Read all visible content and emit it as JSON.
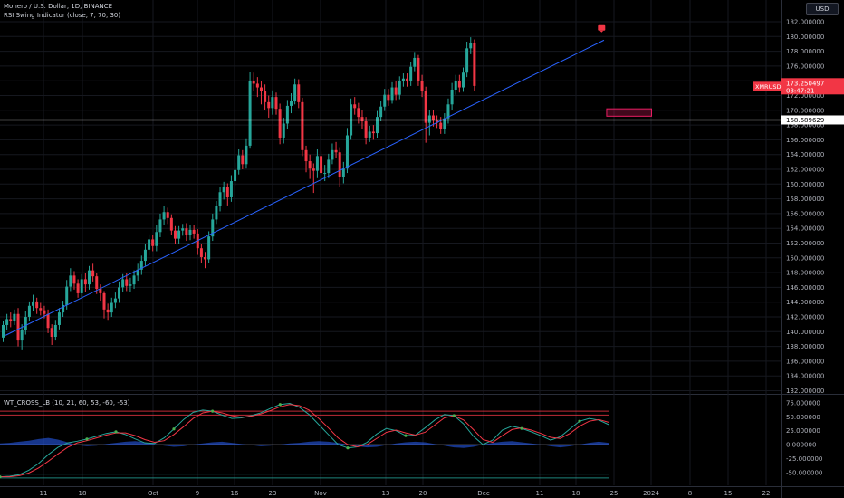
{
  "header": {
    "title": "Monero / U.S. Dollar, 1D, BINANCE",
    "indicator": "RSI Swing Indicator (close, 7, 70, 30)",
    "currency_button": "USD"
  },
  "lower_pane": {
    "indicator": "WT_CROSS_LB (10, 21, 60, 53, -60, -53)"
  },
  "price_axis": {
    "ticks": [
      "182.000000",
      "180.000000",
      "178.000000",
      "176.000000",
      "174.000000",
      "172.000000",
      "170.000000",
      "168.000000",
      "166.000000",
      "164.000000",
      "162.000000",
      "160.000000",
      "158.000000",
      "156.000000",
      "154.000000",
      "152.000000",
      "150.000000",
      "148.000000",
      "146.000000",
      "144.000000",
      "142.000000",
      "140.000000",
      "138.000000",
      "136.000000",
      "134.000000",
      "132.000000"
    ],
    "symbol_tag": "XMRUSD",
    "last_price": "173.250497",
    "countdown": "03:47:21",
    "line_price": "168.689629"
  },
  "osc_axis": {
    "ticks": [
      "75.000000",
      "50.000000",
      "25.000000",
      "0.000000",
      "-25.000000",
      "-50.000000"
    ]
  },
  "time_axis": {
    "ticks": [
      "11",
      "18",
      "Oct",
      "9",
      "16",
      "23",
      "Nov",
      "13",
      "20",
      "Dec",
      "11",
      "18",
      "25",
      "2024",
      "8",
      "15",
      "22"
    ]
  },
  "chart_data": [
    {
      "type": "candlestick",
      "symbol": "Monero / U.S. Dollar",
      "interval": "1D",
      "exchange": "BINANCE",
      "ylim": [
        131,
        183
      ],
      "last_price": 173.250497,
      "horizontal_line": 168.689629,
      "trendline": [
        [
          1,
          139.5
        ],
        [
          161,
          179.5
        ]
      ],
      "candles": [
        [
          139.2,
          140.9,
          138.6,
          141.5
        ],
        [
          140.9,
          141.7,
          140.2,
          142.4
        ],
        [
          141.7,
          141.4,
          140.6,
          142.6
        ],
        [
          141.4,
          142.4,
          140.9,
          143.0
        ],
        [
          142.4,
          138.8,
          138.0,
          143.2
        ],
        [
          138.8,
          140.2,
          137.6,
          141.0
        ],
        [
          140.2,
          142.0,
          139.6,
          142.8
        ],
        [
          142.0,
          143.5,
          141.4,
          144.1
        ],
        [
          143.5,
          144.1,
          142.8,
          145.0
        ],
        [
          144.1,
          143.2,
          142.4,
          144.6
        ],
        [
          143.2,
          142.9,
          142.2,
          143.9
        ],
        [
          142.9,
          142.4,
          141.8,
          143.5
        ],
        [
          142.4,
          140.5,
          139.8,
          143.0
        ],
        [
          140.5,
          139.3,
          138.2,
          141.0
        ],
        [
          139.3,
          140.9,
          138.8,
          141.6
        ],
        [
          140.9,
          142.6,
          140.3,
          143.2
        ],
        [
          142.6,
          143.6,
          142.0,
          144.2
        ],
        [
          143.6,
          146.1,
          143.0,
          147.0
        ],
        [
          146.1,
          147.6,
          145.5,
          148.6
        ],
        [
          147.6,
          146.5,
          145.7,
          148.2
        ],
        [
          146.5,
          145.2,
          144.6,
          147.1
        ],
        [
          145.2,
          147.1,
          144.6,
          147.8
        ],
        [
          147.1,
          146.4,
          145.4,
          148.0
        ],
        [
          146.4,
          148.3,
          145.7,
          148.9
        ],
        [
          148.3,
          147.5,
          146.8,
          149.2
        ],
        [
          147.5,
          145.8,
          145.1,
          148.0
        ],
        [
          145.8,
          145.2,
          144.2,
          146.4
        ],
        [
          145.2,
          143.0,
          141.8,
          145.5
        ],
        [
          143.0,
          142.6,
          141.6,
          143.8
        ],
        [
          142.6,
          143.9,
          142.0,
          144.6
        ],
        [
          143.9,
          144.5,
          143.2,
          145.3
        ],
        [
          144.5,
          146.0,
          143.9,
          146.8
        ],
        [
          146.0,
          147.1,
          145.4,
          147.8
        ],
        [
          147.1,
          146.2,
          145.5,
          147.9
        ],
        [
          146.2,
          146.4,
          145.4,
          147.3
        ],
        [
          146.4,
          147.6,
          145.8,
          148.3
        ],
        [
          147.6,
          148.4,
          146.9,
          149.2
        ],
        [
          148.4,
          149.6,
          147.7,
          150.3
        ],
        [
          149.6,
          151.1,
          148.9,
          151.9
        ],
        [
          151.1,
          152.5,
          150.3,
          153.2
        ],
        [
          152.5,
          151.6,
          150.9,
          153.1
        ],
        [
          151.6,
          153.5,
          150.9,
          154.4
        ],
        [
          153.5,
          155.2,
          152.8,
          156.0
        ],
        [
          155.2,
          156.2,
          154.5,
          157.0
        ],
        [
          156.2,
          155.4,
          154.6,
          156.8
        ],
        [
          155.4,
          153.7,
          153.1,
          155.9
        ],
        [
          153.7,
          152.6,
          151.9,
          154.3
        ],
        [
          152.6,
          153.7,
          151.9,
          154.3
        ],
        [
          153.7,
          154.0,
          153.0,
          154.6
        ],
        [
          154.0,
          153.1,
          152.3,
          154.7
        ],
        [
          153.1,
          153.8,
          152.4,
          154.5
        ],
        [
          153.8,
          153.3,
          152.6,
          154.4
        ],
        [
          153.3,
          151.3,
          150.4,
          153.9
        ],
        [
          151.3,
          150.1,
          149.3,
          151.9
        ],
        [
          150.1,
          149.8,
          148.6,
          150.8
        ],
        [
          149.8,
          152.9,
          149.3,
          153.6
        ],
        [
          152.9,
          155.2,
          152.3,
          156.0
        ],
        [
          155.2,
          157.0,
          154.6,
          157.7
        ],
        [
          157.0,
          158.9,
          156.3,
          159.6
        ],
        [
          158.9,
          159.6,
          157.9,
          160.3
        ],
        [
          159.6,
          158.2,
          157.1,
          160.1
        ],
        [
          158.2,
          160.4,
          157.6,
          161.2
        ],
        [
          160.4,
          161.9,
          159.8,
          162.9
        ],
        [
          161.9,
          163.9,
          161.3,
          164.7
        ],
        [
          163.9,
          162.7,
          162.0,
          164.6
        ],
        [
          162.7,
          165.2,
          162.1,
          166.2
        ],
        [
          165.2,
          174.0,
          164.8,
          175.2
        ],
        [
          174.0,
          173.6,
          172.6,
          175.1
        ],
        [
          173.6,
          173.1,
          171.8,
          174.5
        ],
        [
          173.1,
          172.6,
          170.8,
          173.9
        ],
        [
          172.6,
          171.1,
          170.1,
          173.5
        ],
        [
          171.1,
          170.3,
          169.0,
          172.0
        ],
        [
          170.3,
          171.8,
          169.4,
          172.7
        ],
        [
          171.8,
          170.2,
          169.4,
          172.4
        ],
        [
          170.2,
          166.3,
          165.4,
          170.9
        ],
        [
          166.3,
          168.2,
          165.5,
          169.0
        ],
        [
          168.2,
          170.6,
          167.5,
          171.4
        ],
        [
          170.6,
          171.3,
          169.6,
          172.3
        ],
        [
          171.3,
          173.5,
          170.8,
          174.3
        ],
        [
          173.5,
          171.1,
          170.3,
          174.2
        ],
        [
          171.1,
          164.6,
          163.8,
          171.7
        ],
        [
          164.6,
          163.1,
          161.6,
          165.2
        ],
        [
          163.1,
          162.1,
          160.7,
          164.0
        ],
        [
          162.1,
          161.8,
          158.8,
          162.8
        ],
        [
          161.8,
          163.8,
          160.8,
          164.7
        ],
        [
          163.8,
          161.5,
          160.8,
          164.4
        ],
        [
          161.5,
          161.5,
          160.4,
          162.6
        ],
        [
          161.5,
          163.3,
          160.8,
          164.1
        ],
        [
          163.3,
          164.6,
          162.7,
          165.5
        ],
        [
          164.6,
          164.3,
          163.5,
          165.7
        ],
        [
          164.3,
          160.9,
          159.6,
          165.0
        ],
        [
          160.9,
          162.1,
          160.1,
          163.0
        ],
        [
          162.1,
          166.6,
          161.5,
          167.6
        ],
        [
          166.6,
          170.8,
          166.0,
          171.6
        ],
        [
          170.8,
          170.3,
          169.4,
          171.8
        ],
        [
          170.3,
          169.1,
          168.2,
          171.0
        ],
        [
          169.1,
          168.5,
          167.4,
          170.0
        ],
        [
          168.5,
          166.3,
          165.4,
          169.1
        ],
        [
          166.3,
          167.1,
          165.7,
          167.9
        ],
        [
          167.1,
          166.9,
          166.0,
          168.0
        ],
        [
          166.9,
          169.1,
          166.3,
          169.9
        ],
        [
          169.1,
          170.5,
          168.5,
          171.2
        ],
        [
          170.5,
          172.1,
          169.9,
          172.9
        ],
        [
          172.1,
          171.4,
          170.6,
          172.9
        ],
        [
          171.4,
          173.1,
          170.9,
          173.8
        ],
        [
          173.1,
          172.1,
          171.4,
          173.9
        ],
        [
          172.1,
          173.9,
          171.5,
          174.6
        ],
        [
          173.9,
          174.3,
          173.2,
          175.0
        ],
        [
          174.3,
          173.9,
          173.2,
          175.0
        ],
        [
          173.9,
          175.9,
          173.3,
          176.6
        ],
        [
          175.9,
          177.1,
          175.3,
          177.9
        ],
        [
          177.1,
          174.0,
          173.3,
          177.5
        ],
        [
          174.0,
          172.6,
          171.8,
          174.8
        ],
        [
          172.6,
          168.3,
          165.6,
          173.2
        ],
        [
          168.3,
          169.3,
          166.6,
          170.0
        ],
        [
          169.3,
          168.6,
          167.8,
          170.1
        ],
        [
          168.6,
          168.3,
          167.6,
          169.3
        ],
        [
          168.3,
          167.5,
          166.8,
          169.1
        ],
        [
          167.5,
          168.9,
          166.8,
          169.6
        ],
        [
          168.9,
          170.8,
          168.2,
          171.6
        ],
        [
          170.8,
          172.8,
          170.1,
          173.7
        ],
        [
          172.8,
          174.0,
          172.1,
          174.8
        ],
        [
          174.0,
          173.1,
          172.4,
          174.8
        ],
        [
          173.1,
          175.1,
          172.5,
          175.8
        ],
        [
          175.1,
          178.4,
          174.5,
          179.3
        ],
        [
          178.4,
          179.1,
          177.6,
          179.9
        ],
        [
          179.1,
          173.3,
          172.6,
          179.6
        ]
      ],
      "markers": [
        {
          "bar": 160,
          "price": 180.8,
          "color": "#f23645"
        }
      ],
      "zone": {
        "from_bar": 161,
        "to_bar": 173,
        "low": 169.2,
        "high": 170.2,
        "color": "#e91e63"
      }
    },
    {
      "type": "line",
      "indicator": "WT_CROSS_LB (10, 21, 60, 53, -60, -53)",
      "ylim": [
        -58,
        86
      ],
      "levels": [
        60,
        53,
        -60,
        -53
      ],
      "series": [
        {
          "color": "#26a69a",
          "values": [
            -58,
            -57,
            -54,
            -46,
            -34,
            -18,
            -5,
            3,
            6,
            10,
            15,
            20,
            23,
            18,
            10,
            3,
            2,
            12,
            28,
            45,
            58,
            62,
            60,
            53,
            47,
            48,
            52,
            57,
            65,
            72,
            74,
            67,
            54,
            36,
            18,
            0,
            -6,
            -4,
            4,
            19,
            29,
            25,
            16,
            17,
            30,
            44,
            54,
            52,
            37,
            15,
            0,
            8,
            26,
            33,
            29,
            23,
            16,
            8,
            14,
            28,
            42,
            47,
            44,
            36
          ]
        },
        {
          "color": "#f23645",
          "values": [
            -58,
            -58,
            -56,
            -51,
            -42,
            -30,
            -17,
            -5,
            3,
            7,
            12,
            17,
            21,
            21,
            16,
            9,
            4,
            7,
            18,
            32,
            47,
            57,
            60,
            57,
            52,
            49,
            51,
            55,
            61,
            68,
            72,
            70,
            62,
            47,
            30,
            12,
            0,
            -4,
            0,
            11,
            22,
            26,
            21,
            17,
            22,
            35,
            48,
            52,
            44,
            27,
            9,
            4,
            16,
            27,
            30,
            26,
            20,
            13,
            11,
            20,
            33,
            42,
            45,
            40
          ]
        }
      ],
      "cross_markers": [
        0,
        9,
        12,
        18,
        22,
        29,
        36,
        42,
        47,
        54,
        60
      ],
      "histogram": [
        2,
        3,
        5,
        7,
        10,
        12,
        9,
        4,
        -1,
        -3,
        -2,
        1,
        3,
        5,
        6,
        4,
        1,
        -2,
        -4,
        -3,
        0,
        2,
        4,
        5,
        3,
        1,
        -1,
        -3,
        -2,
        0,
        2,
        3,
        5,
        6,
        5,
        3,
        0,
        -3,
        -5,
        -4,
        -1,
        2,
        4,
        5,
        4,
        1,
        -2,
        -5,
        -6,
        -4,
        0,
        3,
        5,
        6,
        4,
        2,
        0,
        -3,
        -5,
        -3,
        0,
        3,
        5,
        3
      ]
    }
  ]
}
